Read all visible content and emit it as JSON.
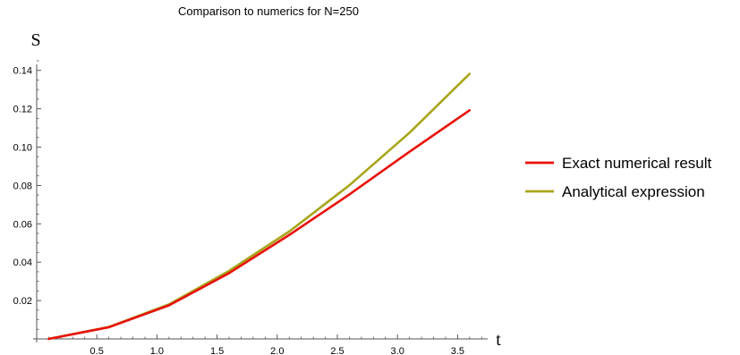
{
  "chart_data": {
    "type": "line",
    "title": "Comparison to numerics for N=250",
    "xlabel": "t",
    "ylabel": "S",
    "xlim": [
      0,
      3.75
    ],
    "ylim": [
      0,
      0.145
    ],
    "xticks": [
      0.5,
      1.0,
      1.5,
      2.0,
      2.5,
      3.0,
      3.5
    ],
    "xtick_labels": [
      "0.5",
      "1.0",
      "1.5",
      "2.0",
      "2.5",
      "3.0",
      "3.5"
    ],
    "yticks": [
      0.02,
      0.04,
      0.06,
      0.08,
      0.1,
      0.12,
      0.14
    ],
    "ytick_labels": [
      "0.02",
      "0.04",
      "0.06",
      "0.08",
      "0.10",
      "0.12",
      "0.14"
    ],
    "grid": false,
    "legend_position": "right",
    "x": [
      0.1,
      0.6,
      1.1,
      1.6,
      2.1,
      2.6,
      3.1,
      3.6
    ],
    "series": [
      {
        "name": "Exact numerical result",
        "color": "#e8120c",
        "values": [
          0.0,
          0.0061,
          0.0175,
          0.0343,
          0.0542,
          0.0753,
          0.0976,
          0.1192
        ]
      },
      {
        "name": "Analytical expression",
        "color": "#a8a519",
        "values": [
          0.0,
          0.0062,
          0.018,
          0.0355,
          0.056,
          0.0801,
          0.1075,
          0.1382
        ]
      }
    ]
  }
}
